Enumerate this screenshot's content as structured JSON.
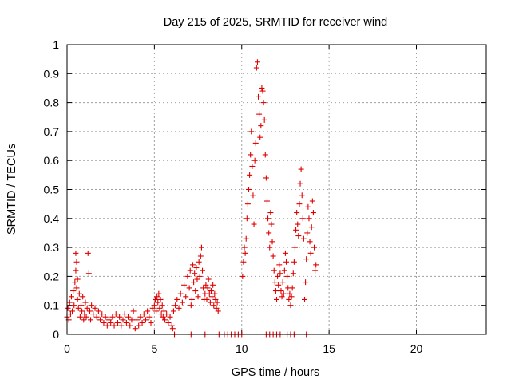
{
  "chart_data": {
    "type": "scatter",
    "title": "Day 215 of 2025, SRMTID for receiver wind",
    "xlabel": "GPS time / hours",
    "ylabel": "SRMTID / TECUs",
    "xlim": [
      0,
      24
    ],
    "ylim": [
      0,
      1
    ],
    "xticks": [
      0,
      5,
      10,
      15,
      20
    ],
    "xtick_labels": [
      "0",
      "5",
      "10",
      "15",
      "20"
    ],
    "yticks": [
      0,
      0.1,
      0.2,
      0.3,
      0.4,
      0.5,
      0.6,
      0.7,
      0.8,
      0.9,
      1
    ],
    "ytick_labels": [
      "0",
      "0.1",
      "0.2",
      "0.3",
      "0.4",
      "0.5",
      "0.6",
      "0.7",
      "0.8",
      "0.9",
      "1"
    ],
    "grid": true,
    "marker": "+",
    "color": "#e00000",
    "series": [
      {
        "name": "SRMTID",
        "points": [
          [
            0.0,
            0.06
          ],
          [
            0.05,
            0.09
          ],
          [
            0.1,
            0.05
          ],
          [
            0.15,
            0.11
          ],
          [
            0.2,
            0.07
          ],
          [
            0.25,
            0.13
          ],
          [
            0.3,
            0.08
          ],
          [
            0.35,
            0.15
          ],
          [
            0.4,
            0.1
          ],
          [
            0.45,
            0.18
          ],
          [
            0.5,
            0.22
          ],
          [
            0.5,
            0.28
          ],
          [
            0.55,
            0.16
          ],
          [
            0.55,
            0.25
          ],
          [
            0.6,
            0.12
          ],
          [
            0.6,
            0.19
          ],
          [
            0.65,
            0.09
          ],
          [
            0.7,
            0.14
          ],
          [
            0.75,
            0.06
          ],
          [
            0.8,
            0.1
          ],
          [
            0.85,
            0.08
          ],
          [
            0.9,
            0.13
          ],
          [
            0.95,
            0.05
          ],
          [
            1.0,
            0.07
          ],
          [
            1.05,
            0.11
          ],
          [
            1.1,
            0.06
          ],
          [
            1.15,
            0.09
          ],
          [
            1.2,
            0.28
          ],
          [
            1.25,
            0.21
          ],
          [
            1.3,
            0.08
          ],
          [
            1.35,
            0.05
          ],
          [
            1.4,
            0.1
          ],
          [
            1.5,
            0.07
          ],
          [
            1.6,
            0.09
          ],
          [
            1.7,
            0.06
          ],
          [
            1.8,
            0.08
          ],
          [
            1.9,
            0.05
          ],
          [
            2.0,
            0.07
          ],
          [
            2.1,
            0.04
          ],
          [
            2.2,
            0.06
          ],
          [
            2.3,
            0.03
          ],
          [
            2.4,
            0.05
          ],
          [
            2.5,
            0.04
          ],
          [
            2.6,
            0.06
          ],
          [
            2.7,
            0.03
          ],
          [
            2.8,
            0.07
          ],
          [
            2.9,
            0.04
          ],
          [
            3.0,
            0.06
          ],
          [
            3.1,
            0.03
          ],
          [
            3.2,
            0.05
          ],
          [
            3.3,
            0.07
          ],
          [
            3.4,
            0.04
          ],
          [
            3.5,
            0.06
          ],
          [
            3.6,
            0.03
          ],
          [
            3.7,
            0.05
          ],
          [
            3.8,
            0.08
          ],
          [
            3.9,
            0.02
          ],
          [
            4.0,
            0.05
          ],
          [
            4.1,
            0.03
          ],
          [
            4.2,
            0.06
          ],
          [
            4.3,
            0.04
          ],
          [
            4.4,
            0.07
          ],
          [
            4.5,
            0.05
          ],
          [
            4.6,
            0.08
          ],
          [
            4.7,
            0.06
          ],
          [
            4.8,
            0.04
          ],
          [
            4.9,
            0.09
          ],
          [
            5.0,
            0.1
          ],
          [
            5.05,
            0.12
          ],
          [
            5.1,
            0.08
          ],
          [
            5.15,
            0.13
          ],
          [
            5.2,
            0.11
          ],
          [
            5.25,
            0.14
          ],
          [
            5.3,
            0.09
          ],
          [
            5.35,
            0.12
          ],
          [
            5.4,
            0.07
          ],
          [
            5.45,
            0.1
          ],
          [
            5.5,
            0.06
          ],
          [
            5.55,
            0.08
          ],
          [
            5.6,
            0.05
          ],
          [
            5.7,
            0.07
          ],
          [
            5.8,
            0.04
          ],
          [
            5.9,
            0.06
          ],
          [
            6.0,
            0.03
          ],
          [
            6.05,
            0.02
          ],
          [
            6.1,
            0.08
          ],
          [
            6.2,
            0.1
          ],
          [
            6.3,
            0.12
          ],
          [
            6.4,
            0.09
          ],
          [
            6.5,
            0.14
          ],
          [
            6.6,
            0.11
          ],
          [
            6.7,
            0.17
          ],
          [
            6.8,
            0.13
          ],
          [
            6.9,
            0.2
          ],
          [
            7.0,
            0.16
          ],
          [
            7.05,
            0.22
          ],
          [
            7.1,
            0.1
          ],
          [
            7.15,
            0.12
          ],
          [
            7.2,
            0.24
          ],
          [
            7.25,
            0.18
          ],
          [
            7.3,
            0.21
          ],
          [
            7.35,
            0.15
          ],
          [
            7.4,
            0.23
          ],
          [
            7.45,
            0.19
          ],
          [
            7.5,
            0.13
          ],
          [
            7.55,
            0.25
          ],
          [
            7.6,
            0.2
          ],
          [
            7.65,
            0.27
          ],
          [
            7.7,
            0.3
          ],
          [
            7.75,
            0.22
          ],
          [
            7.8,
            0.16
          ],
          [
            7.85,
            0.12
          ],
          [
            7.9,
            0.14
          ],
          [
            7.95,
            0.17
          ],
          [
            8.0,
            0.12
          ],
          [
            8.05,
            0.16
          ],
          [
            8.1,
            0.19
          ],
          [
            8.15,
            0.14
          ],
          [
            8.2,
            0.11
          ],
          [
            8.25,
            0.15
          ],
          [
            8.3,
            0.13
          ],
          [
            8.35,
            0.17
          ],
          [
            8.4,
            0.1
          ],
          [
            8.45,
            0.14
          ],
          [
            8.5,
            0.12
          ],
          [
            8.55,
            0.09
          ],
          [
            8.6,
            0.11
          ],
          [
            8.65,
            0.08
          ],
          [
            10.05,
            0.2
          ],
          [
            10.1,
            0.25
          ],
          [
            10.15,
            0.3
          ],
          [
            10.2,
            0.28
          ],
          [
            10.25,
            0.33
          ],
          [
            10.3,
            0.4
          ],
          [
            10.35,
            0.45
          ],
          [
            10.4,
            0.5
          ],
          [
            10.45,
            0.55
          ],
          [
            10.5,
            0.62
          ],
          [
            10.55,
            0.7
          ],
          [
            10.6,
            0.58
          ],
          [
            10.65,
            0.48
          ],
          [
            10.7,
            0.38
          ],
          [
            10.75,
            0.6
          ],
          [
            10.8,
            0.66
          ],
          [
            10.85,
            0.92
          ],
          [
            10.9,
            0.94
          ],
          [
            10.95,
            0.82
          ],
          [
            11.0,
            0.76
          ],
          [
            11.05,
            0.68
          ],
          [
            11.1,
            0.72
          ],
          [
            11.15,
            0.85
          ],
          [
            11.2,
            0.84
          ],
          [
            11.25,
            0.8
          ],
          [
            11.3,
            0.74
          ],
          [
            11.35,
            0.62
          ],
          [
            11.4,
            0.54
          ],
          [
            11.45,
            0.46
          ],
          [
            11.5,
            0.4
          ],
          [
            11.55,
            0.35
          ],
          [
            11.6,
            0.3
          ],
          [
            11.65,
            0.42
          ],
          [
            11.7,
            0.38
          ],
          [
            11.75,
            0.32
          ],
          [
            11.8,
            0.27
          ],
          [
            11.85,
            0.22
          ],
          [
            11.9,
            0.18
          ],
          [
            11.95,
            0.15
          ],
          [
            12.0,
            0.12
          ],
          [
            12.05,
            0.2
          ],
          [
            12.1,
            0.17
          ],
          [
            12.15,
            0.24
          ],
          [
            12.2,
            0.21
          ],
          [
            12.25,
            0.15
          ],
          [
            12.3,
            0.13
          ],
          [
            12.35,
            0.18
          ],
          [
            12.4,
            0.14
          ],
          [
            12.45,
            0.22
          ],
          [
            12.5,
            0.28
          ],
          [
            12.55,
            0.25
          ],
          [
            12.6,
            0.2
          ],
          [
            12.65,
            0.16
          ],
          [
            12.7,
            0.12
          ],
          [
            12.75,
            0.14
          ],
          [
            12.8,
            0.1
          ],
          [
            12.85,
            0.13
          ],
          [
            12.9,
            0.16
          ],
          [
            12.95,
            0.21
          ],
          [
            13.0,
            0.25
          ],
          [
            13.05,
            0.3
          ],
          [
            13.1,
            0.36
          ],
          [
            13.15,
            0.42
          ],
          [
            13.2,
            0.38
          ],
          [
            13.25,
            0.34
          ],
          [
            13.3,
            0.45
          ],
          [
            13.35,
            0.52
          ],
          [
            13.4,
            0.57
          ],
          [
            13.45,
            0.48
          ],
          [
            13.5,
            0.4
          ],
          [
            13.55,
            0.33
          ],
          [
            13.6,
            0.12
          ],
          [
            13.65,
            0.18
          ],
          [
            13.7,
            0.26
          ],
          [
            13.75,
            0.35
          ],
          [
            13.8,
            0.44
          ],
          [
            13.85,
            0.4
          ],
          [
            13.9,
            0.32
          ],
          [
            13.95,
            0.28
          ],
          [
            14.0,
            0.37
          ],
          [
            14.05,
            0.46
          ],
          [
            14.1,
            0.42
          ],
          [
            14.15,
            0.3
          ],
          [
            14.2,
            0.22
          ],
          [
            14.25,
            0.24
          ],
          [
            6.15,
            0.0
          ],
          [
            7.1,
            0.0
          ],
          [
            7.9,
            0.0
          ],
          [
            8.7,
            0.0
          ],
          [
            9.0,
            0.0
          ],
          [
            9.2,
            0.0
          ],
          [
            9.4,
            0.0
          ],
          [
            9.6,
            0.0
          ],
          [
            9.8,
            0.0
          ],
          [
            10.0,
            0.0
          ],
          [
            11.4,
            0.0
          ],
          [
            11.6,
            0.0
          ],
          [
            11.8,
            0.0
          ],
          [
            12.0,
            0.0
          ],
          [
            12.2,
            0.0
          ],
          [
            12.6,
            0.0
          ],
          [
            12.8,
            0.0
          ],
          [
            13.0,
            0.0
          ],
          [
            13.7,
            0.0
          ]
        ]
      }
    ]
  }
}
